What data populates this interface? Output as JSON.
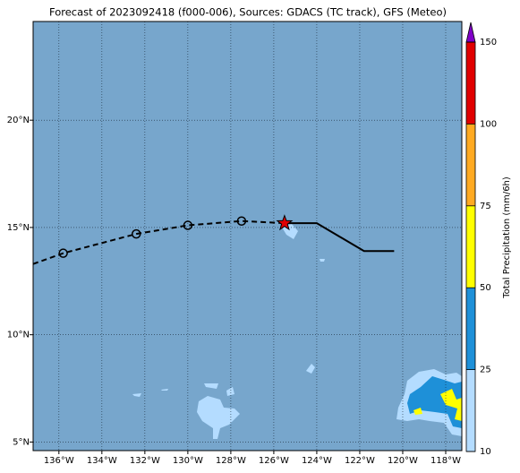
{
  "title": "Forecast of 2023092418 (f000-006), Sources: GDACS (TC track), GFS (Meteo)",
  "map": {
    "xlim": [
      -137.2,
      -117.25
    ],
    "ylim": [
      4.6,
      24.6
    ],
    "xticks": [
      {
        "value": -136,
        "label": "136°W"
      },
      {
        "value": -134,
        "label": "134°W"
      },
      {
        "value": -132,
        "label": "132°W"
      },
      {
        "value": -130,
        "label": "130°W"
      },
      {
        "value": -128,
        "label": "128°W"
      },
      {
        "value": -126,
        "label": "126°W"
      },
      {
        "value": -124,
        "label": "124°W"
      },
      {
        "value": -122,
        "label": "122°W"
      },
      {
        "value": -120,
        "label": "120°W"
      },
      {
        "value": -118,
        "label": "118°W"
      }
    ],
    "yticks": [
      {
        "value": 5,
        "label": "5°N"
      },
      {
        "value": 10,
        "label": "10°N"
      },
      {
        "value": 15,
        "label": "15°N"
      },
      {
        "value": 20,
        "label": "20°N"
      }
    ],
    "background": "#77a6cc",
    "grid": true,
    "past_track": {
      "lon": [
        -137.2,
        -135.8,
        -132.4,
        -130.0,
        -127.5,
        -125.5
      ],
      "lat": [
        13.3,
        13.8,
        14.7,
        15.1,
        15.3,
        15.2
      ],
      "color": "#000000"
    },
    "current_position": {
      "lon": -125.5,
      "lat": 15.2,
      "color": "#e00000"
    },
    "forecast_track": {
      "lon": [
        -125.5,
        -124.0,
        -121.8,
        -120.4
      ],
      "lat": [
        15.2,
        15.2,
        13.9,
        13.9
      ],
      "color": "#000000"
    }
  },
  "colorbar": {
    "label": "Total Precipitation (mm/6h)",
    "levels": [
      10,
      25,
      50,
      75,
      100,
      150
    ],
    "colors": [
      "#b4dcff",
      "#1e90d8",
      "#ffff00",
      "#ffaa22",
      "#e00000"
    ],
    "extend_color": "#8000c8"
  }
}
